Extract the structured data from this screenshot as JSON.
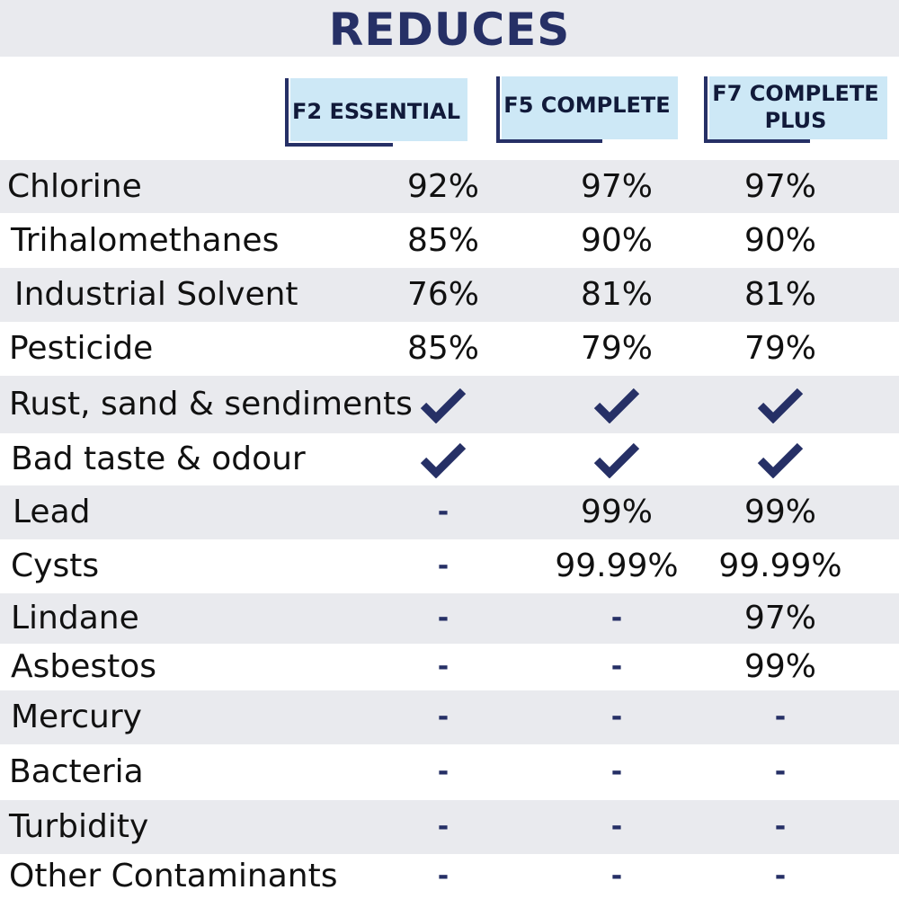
{
  "title": "REDUCES",
  "products": [
    {
      "label_line1": "F2 ESSENTIAL",
      "label_line2": ""
    },
    {
      "label_line1": "F5 COMPLETE",
      "label_line2": ""
    },
    {
      "label_line1": "F7 COMPLETE",
      "label_line2": "PLUS"
    }
  ],
  "rows": [
    {
      "name": "Chlorine",
      "values": [
        "92%",
        "97%",
        "97%"
      ]
    },
    {
      "name": "Trihalomethanes",
      "values": [
        "85%",
        "90%",
        "90%"
      ]
    },
    {
      "name": "Industrial Solvent",
      "values": [
        "76%",
        "81%",
        "81%"
      ]
    },
    {
      "name": "Pesticide",
      "values": [
        "85%",
        "79%",
        "79%"
      ]
    },
    {
      "name": "Rust, sand & sendiments",
      "values": [
        "check",
        "check",
        "check"
      ]
    },
    {
      "name": "Bad taste & odour",
      "values": [
        "check",
        "check",
        "check"
      ]
    },
    {
      "name": "Lead",
      "values": [
        "-",
        "99%",
        "99%"
      ]
    },
    {
      "name": "Cysts",
      "values": [
        "-",
        "99.99%",
        "99.99%"
      ]
    },
    {
      "name": "Lindane",
      "values": [
        "-",
        "-",
        "97%"
      ]
    },
    {
      "name": "Asbestos",
      "values": [
        "-",
        "-",
        "99%"
      ]
    },
    {
      "name": "Mercury",
      "values": [
        "-",
        "-",
        "-"
      ]
    },
    {
      "name": "Bacteria",
      "values": [
        "-",
        "-",
        "-"
      ]
    },
    {
      "name": "Turbidity",
      "values": [
        "-",
        "-",
        "-"
      ]
    },
    {
      "name": "Other Contaminants",
      "values": [
        "-",
        "-",
        "-"
      ]
    }
  ],
  "colors": {
    "accent": "#263066",
    "header_fill": "#cde8f6",
    "band": "#e9eaee"
  }
}
